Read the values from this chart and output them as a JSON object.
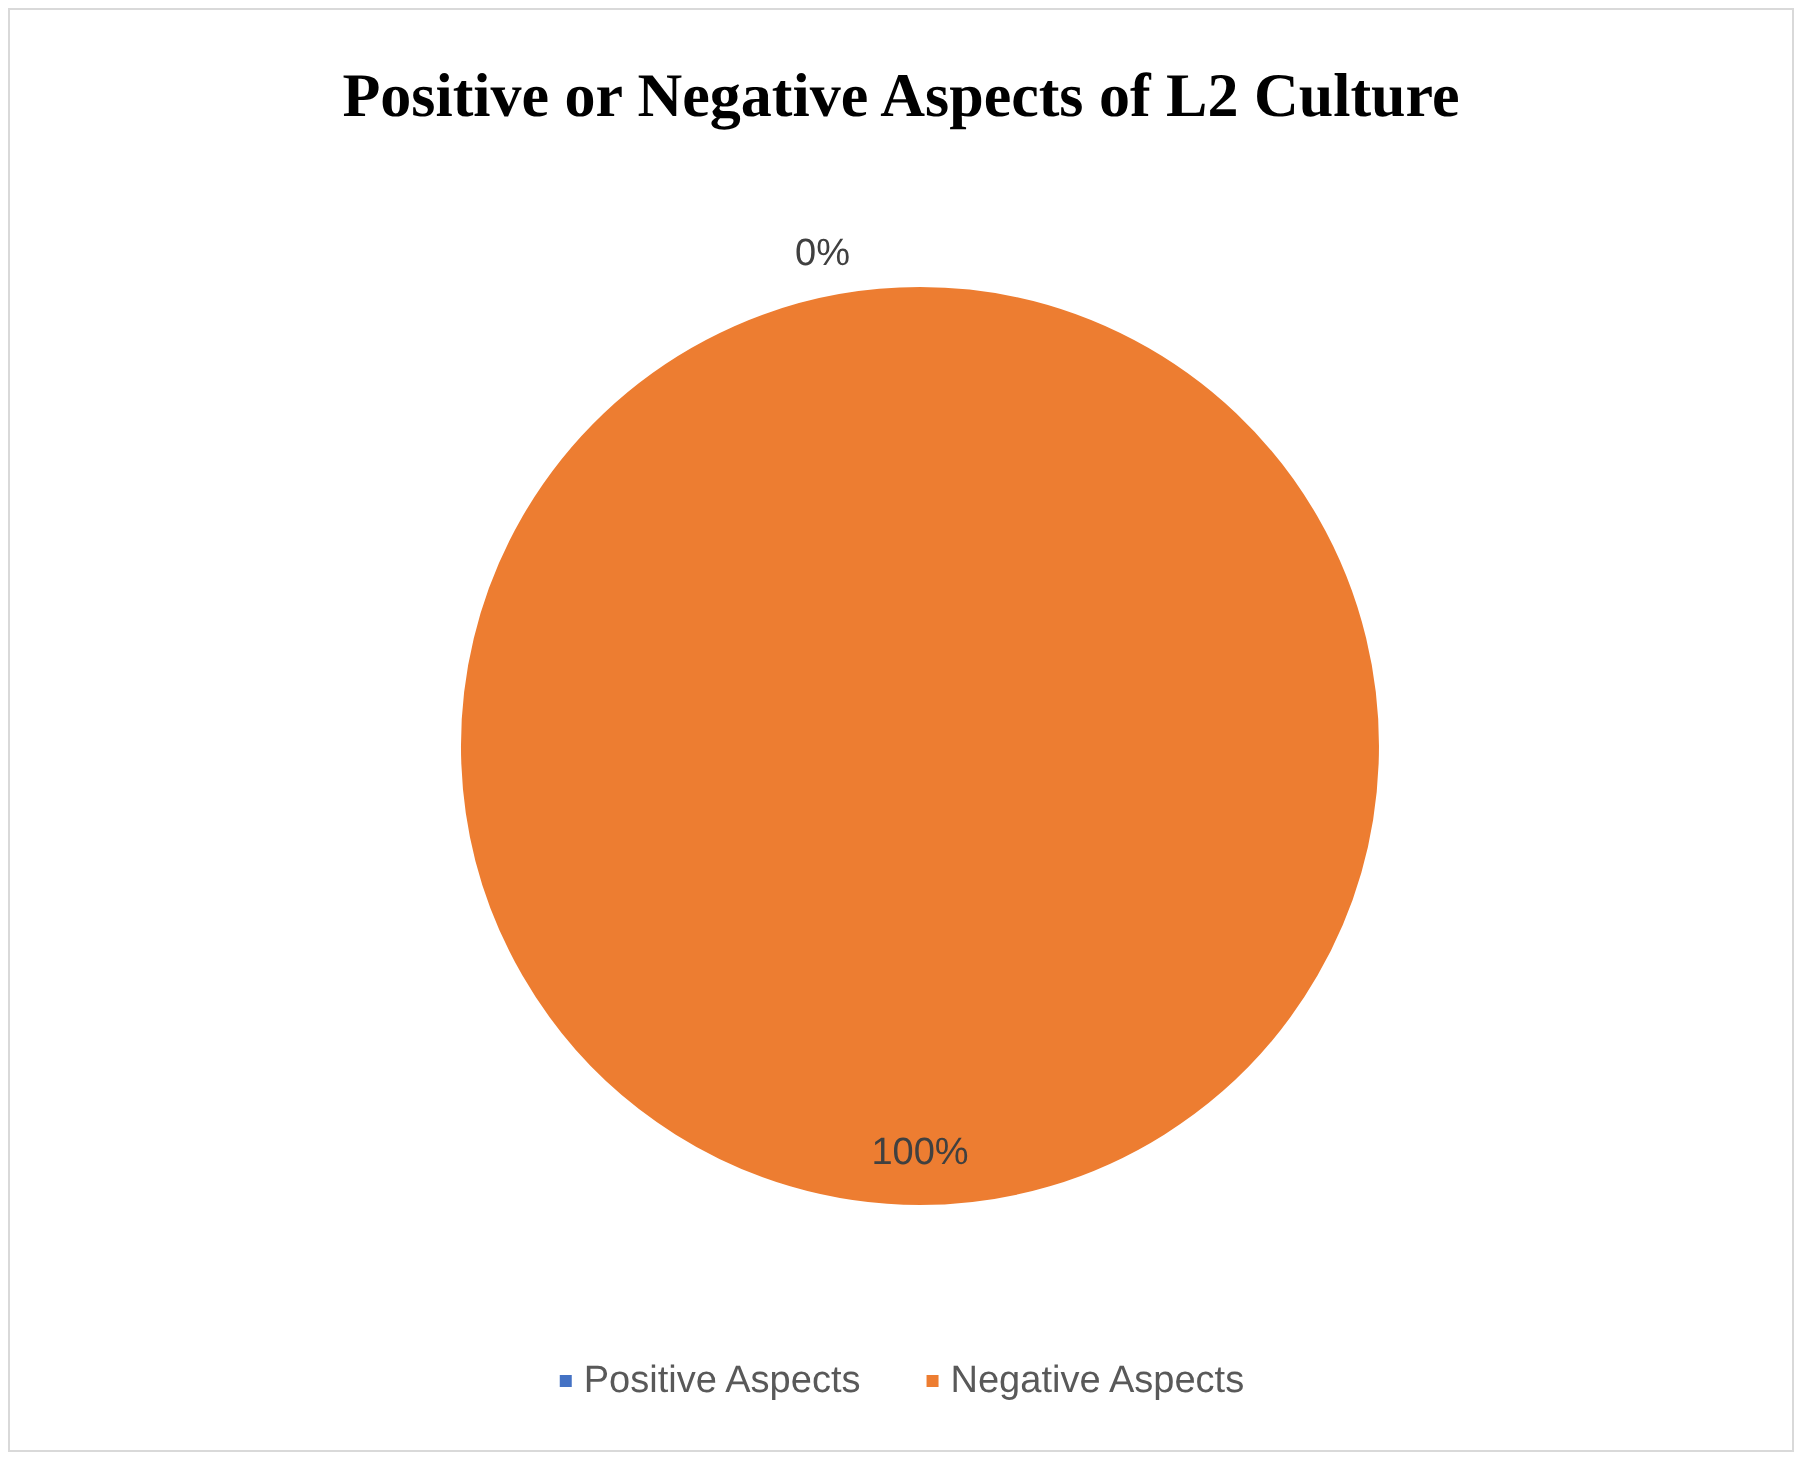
{
  "chart_data": {
    "type": "pie",
    "title": "Positive or Negative Aspects of L2 Culture",
    "categories": [
      "Positive Aspects",
      "Negative Aspects"
    ],
    "values": [
      0,
      100
    ],
    "colors": [
      "#4472c4",
      "#ed7d31"
    ],
    "value_labels": [
      "0%",
      "100%"
    ],
    "legend": "bottom"
  }
}
